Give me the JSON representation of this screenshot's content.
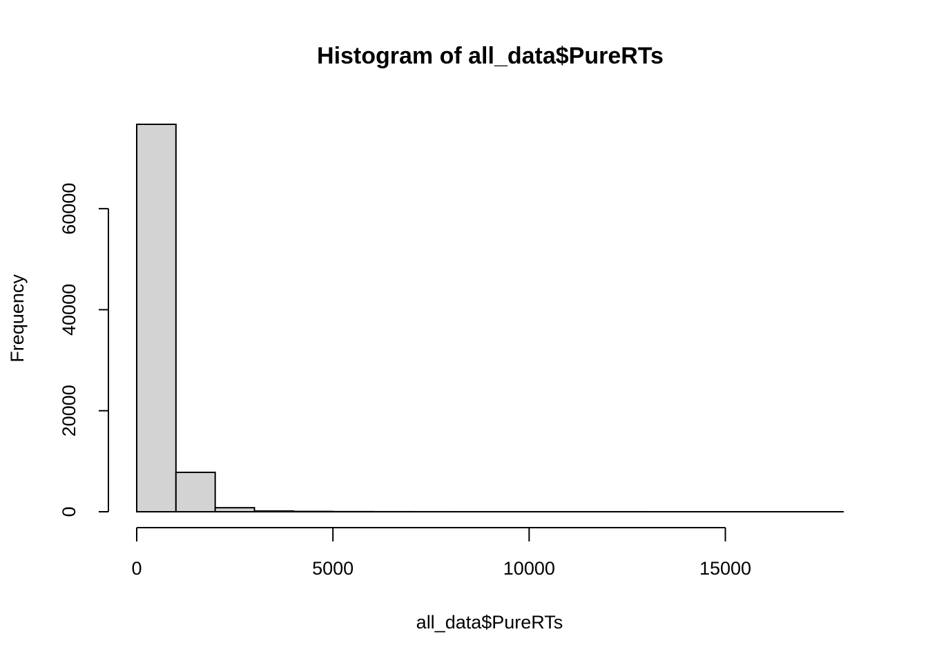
{
  "chart_data": {
    "type": "bar",
    "title": "Histogram of all_data$PureRTs",
    "xlabel": "all_data$PureRTs",
    "ylabel": "Frequency",
    "bin_width": 1000,
    "bins": [
      {
        "start": 0,
        "end": 1000,
        "count": 76700
      },
      {
        "start": 1000,
        "end": 2000,
        "count": 7800
      },
      {
        "start": 2000,
        "end": 3000,
        "count": 800
      },
      {
        "start": 3000,
        "end": 4000,
        "count": 150
      },
      {
        "start": 4000,
        "end": 5000,
        "count": 60
      },
      {
        "start": 5000,
        "end": 6000,
        "count": 25
      },
      {
        "start": 6000,
        "end": 7000,
        "count": 12
      },
      {
        "start": 7000,
        "end": 8000,
        "count": 8
      },
      {
        "start": 8000,
        "end": 9000,
        "count": 5
      },
      {
        "start": 9000,
        "end": 10000,
        "count": 4
      },
      {
        "start": 10000,
        "end": 11000,
        "count": 3
      },
      {
        "start": 11000,
        "end": 12000,
        "count": 2
      },
      {
        "start": 12000,
        "end": 13000,
        "count": 2
      },
      {
        "start": 13000,
        "end": 14000,
        "count": 1
      },
      {
        "start": 14000,
        "end": 15000,
        "count": 1
      },
      {
        "start": 15000,
        "end": 16000,
        "count": 1
      },
      {
        "start": 16000,
        "end": 17000,
        "count": 1
      },
      {
        "start": 17000,
        "end": 18000,
        "count": 1
      }
    ],
    "xlim": [
      0,
      18000
    ],
    "ylim": [
      0,
      76700
    ],
    "x_ticks": [
      0,
      5000,
      10000,
      15000
    ],
    "y_ticks": [
      0,
      20000,
      40000,
      60000
    ],
    "grid": false,
    "legend": "none"
  }
}
